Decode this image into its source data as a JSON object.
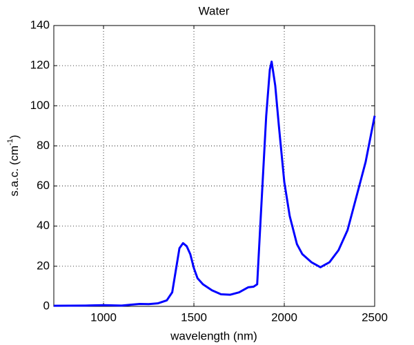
{
  "chart_data": {
    "type": "line",
    "title": "Water",
    "xlabel": "wavelength (nm)",
    "ylabel": {
      "text": "s.a.c. (cm",
      "superscript": "-1",
      "suffix": ")"
    },
    "x": [
      725,
      900,
      1000,
      1100,
      1150,
      1200,
      1250,
      1300,
      1350,
      1380,
      1400,
      1420,
      1440,
      1460,
      1480,
      1500,
      1520,
      1550,
      1600,
      1650,
      1700,
      1750,
      1780,
      1800,
      1830,
      1850,
      1870,
      1900,
      1920,
      1930,
      1950,
      1970,
      2000,
      2030,
      2070,
      2100,
      2150,
      2200,
      2250,
      2300,
      2350,
      2400,
      2450,
      2500
    ],
    "series": [
      {
        "name": "Water",
        "color": "#0000ff",
        "values": [
          0.3,
          0.4,
          0.6,
          0.4,
          0.8,
          1.2,
          1.1,
          1.5,
          3,
          7,
          18,
          29,
          31.5,
          30,
          26,
          19,
          14,
          11,
          8,
          6,
          5.8,
          7,
          8.5,
          9.5,
          9.8,
          11,
          45,
          95,
          118,
          122,
          110,
          90,
          62,
          45,
          31,
          26,
          22,
          19.5,
          22,
          28,
          38,
          55,
          72,
          95
        ]
      }
    ],
    "xlim": [
      725,
      2500
    ],
    "xticks": [
      1000,
      1500,
      2000,
      2500
    ],
    "ylim": [
      0,
      140
    ],
    "yticks": [
      0,
      20,
      40,
      60,
      80,
      100,
      120,
      140
    ],
    "grid": true
  }
}
